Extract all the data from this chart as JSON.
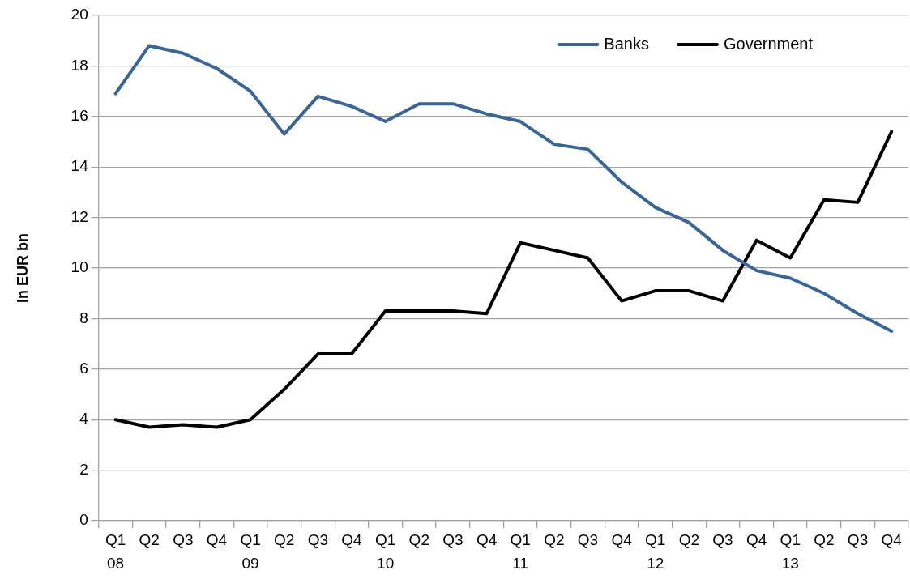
{
  "chart_data": {
    "type": "line",
    "ylabel": "In EUR bn",
    "categories": [
      "Q1\n08",
      "Q2",
      "Q3",
      "Q4",
      "Q1\n09",
      "Q2",
      "Q3",
      "Q4",
      "Q1\n10",
      "Q2",
      "Q3",
      "Q4",
      "Q1\n11",
      "Q2",
      "Q3",
      "Q4",
      "Q1\n12",
      "Q2",
      "Q3",
      "Q4",
      "Q1\n13",
      "Q2",
      "Q3",
      "Q4"
    ],
    "series": [
      {
        "name": "Banks",
        "color": "#3a6595",
        "values": [
          16.9,
          18.8,
          18.5,
          17.9,
          17.0,
          15.3,
          16.8,
          16.4,
          15.8,
          16.5,
          16.5,
          16.1,
          15.8,
          14.9,
          14.7,
          13.4,
          12.4,
          11.8,
          10.7,
          9.9,
          9.6,
          9.0,
          8.2,
          7.5
        ]
      },
      {
        "name": "Government",
        "color": "#000000",
        "values": [
          4.0,
          3.7,
          3.8,
          3.7,
          4.0,
          5.2,
          6.6,
          6.6,
          8.3,
          8.3,
          8.3,
          8.2,
          11.0,
          10.7,
          10.4,
          8.7,
          9.1,
          9.1,
          8.7,
          11.1,
          10.4,
          12.7,
          12.6,
          15.4
        ]
      }
    ],
    "ylim": [
      0,
      20
    ],
    "yticks": [
      0,
      2,
      4,
      6,
      8,
      10,
      12,
      14,
      16,
      18,
      20
    ],
    "grid": "y",
    "legend": "top right",
    "marker": "none",
    "line_style": "solid"
  }
}
